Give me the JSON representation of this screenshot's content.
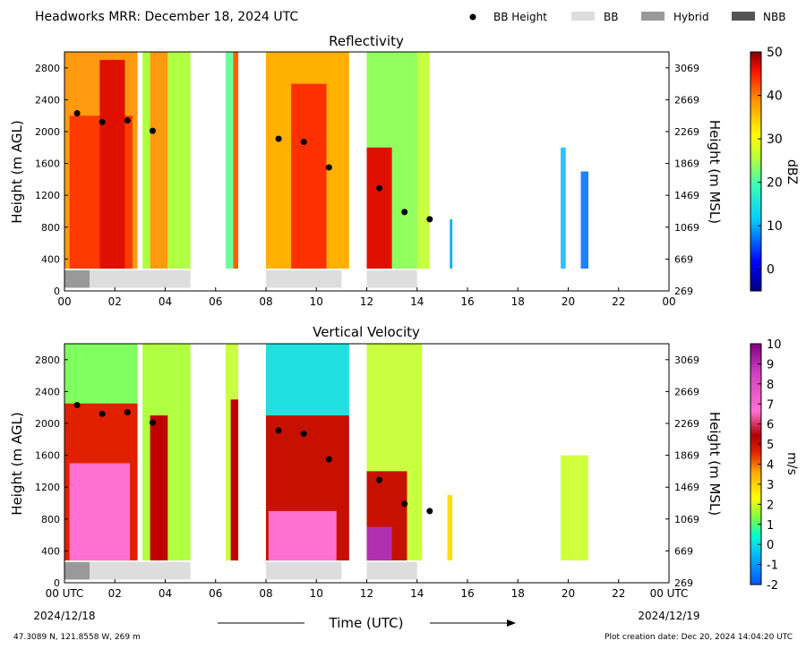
{
  "header": {
    "title": "Headworks MRR:  December 18, 2024 UTC",
    "legend": [
      {
        "label": "BB Height",
        "kind": "dot",
        "color": "#000000"
      },
      {
        "label": "BB",
        "kind": "box",
        "color": "#dddddd"
      },
      {
        "label": "Hybrid",
        "kind": "box",
        "color": "#999999"
      },
      {
        "label": "NBB",
        "kind": "box",
        "color": "#555555"
      }
    ]
  },
  "footer": {
    "location": "47.3089 N, 121.8558 W, 269 m",
    "creation": "Plot creation date: Dec 20, 2024 14:04:20 UTC",
    "xlabel": "Time (UTC)",
    "start_date": "2024/12/18",
    "end_date": "2024/12/19"
  },
  "chart_data": [
    {
      "type": "heatmap",
      "title": "Reflectivity",
      "ylabel": "Height (m AGL)",
      "ylabel_right": "Height (m MSL)",
      "xlim": [
        0,
        24
      ],
      "ylim": [
        0,
        3000
      ],
      "yticks": [
        0,
        400,
        800,
        1200,
        1600,
        2000,
        2400,
        2800
      ],
      "yticks_right": [
        "269",
        "669",
        "1069",
        "1469",
        "1869",
        "2269",
        "2669",
        "3069"
      ],
      "xticks": [
        "00",
        "02",
        "04",
        "06",
        "08",
        "10",
        "12",
        "14",
        "16",
        "18",
        "20",
        "22",
        "00"
      ],
      "colorbar": {
        "label": "dBZ",
        "range": [
          -5,
          50
        ],
        "ticks": [
          "0",
          "10",
          "20",
          "30",
          "40",
          "50"
        ],
        "tick_values": [
          0,
          10,
          20,
          30,
          40,
          50
        ]
      },
      "bb_height": [
        {
          "x": 0.5,
          "y": 2230
        },
        {
          "x": 1.5,
          "y": 2120
        },
        {
          "x": 2.5,
          "y": 2140
        },
        {
          "x": 3.5,
          "y": 2010
        },
        {
          "x": 8.5,
          "y": 1910
        },
        {
          "x": 9.5,
          "y": 1870
        },
        {
          "x": 10.5,
          "y": 1550
        },
        {
          "x": 12.5,
          "y": 1290
        },
        {
          "x": 13.5,
          "y": 990
        },
        {
          "x": 14.5,
          "y": 900
        }
      ],
      "bb_type_bar": [
        {
          "start": 0,
          "end": 1,
          "type": "Hybrid"
        },
        {
          "start": 1,
          "end": 5,
          "type": "BB"
        },
        {
          "start": 8,
          "end": 11,
          "type": "BB"
        },
        {
          "start": 12,
          "end": 14,
          "type": "BB"
        }
      ]
    },
    {
      "type": "heatmap",
      "title": "Vertical Velocity",
      "ylabel": "Height (m AGL)",
      "ylabel_right": "Height (m MSL)",
      "xlim": [
        0,
        24
      ],
      "ylim": [
        0,
        3000
      ],
      "yticks": [
        0,
        400,
        800,
        1200,
        1600,
        2000,
        2400,
        2800
      ],
      "yticks_right": [
        "269",
        "669",
        "1069",
        "1469",
        "1869",
        "2269",
        "2669",
        "3069"
      ],
      "xticks": [
        "00 UTC",
        "02",
        "04",
        "06",
        "08",
        "10",
        "12",
        "14",
        "16",
        "18",
        "20",
        "22",
        "00 UTC"
      ],
      "colorbar": {
        "label": "m/s",
        "range": [
          -2,
          10
        ],
        "ticks": [
          "-2",
          "-1",
          "0",
          "1",
          "2",
          "3",
          "4",
          "5",
          "6",
          "7",
          "8",
          "9",
          "10"
        ],
        "tick_values": [
          -2,
          -1,
          0,
          1,
          2,
          3,
          4,
          5,
          6,
          7,
          8,
          9,
          10
        ]
      },
      "bb_height": [
        {
          "x": 0.5,
          "y": 2230
        },
        {
          "x": 1.5,
          "y": 2120
        },
        {
          "x": 2.5,
          "y": 2140
        },
        {
          "x": 3.5,
          "y": 2010
        },
        {
          "x": 8.5,
          "y": 1910
        },
        {
          "x": 9.5,
          "y": 1870
        },
        {
          "x": 10.5,
          "y": 1550
        },
        {
          "x": 12.5,
          "y": 1290
        },
        {
          "x": 13.5,
          "y": 990
        },
        {
          "x": 14.5,
          "y": 900
        }
      ],
      "bb_type_bar": [
        {
          "start": 0,
          "end": 1,
          "type": "Hybrid"
        },
        {
          "start": 1,
          "end": 5,
          "type": "BB"
        },
        {
          "start": 8,
          "end": 11,
          "type": "BB"
        },
        {
          "start": 12,
          "end": 14,
          "type": "BB"
        }
      ]
    }
  ]
}
